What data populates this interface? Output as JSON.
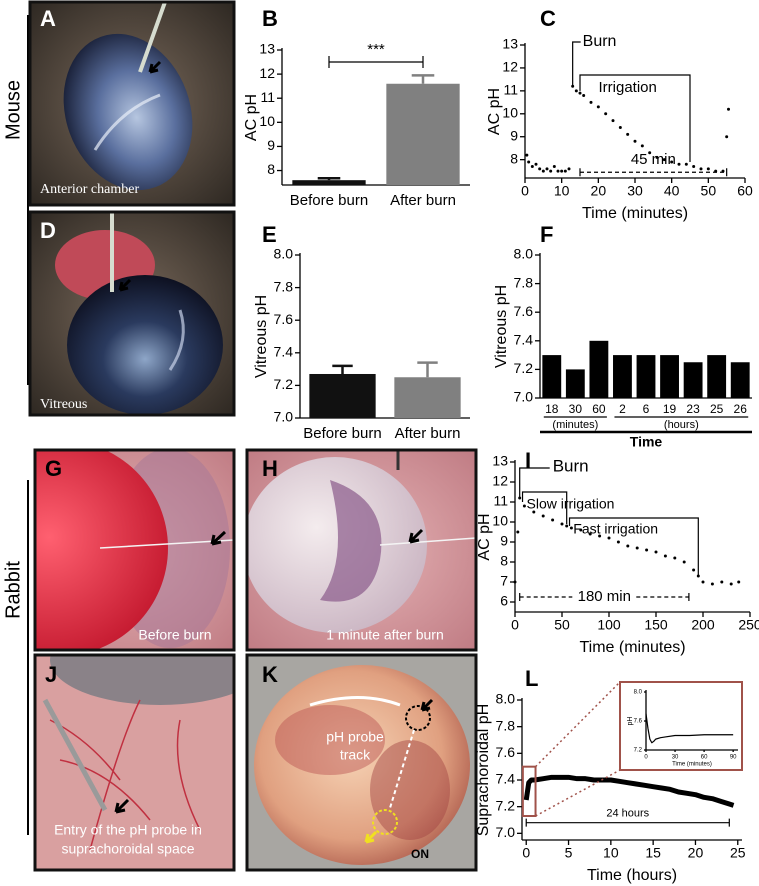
{
  "panel_labels": [
    "A",
    "B",
    "C",
    "D",
    "E",
    "F",
    "G",
    "H",
    "I",
    "J",
    "K",
    "L"
  ],
  "side_labels": [
    "Mouse",
    "Rabbit"
  ],
  "captions": {
    "A": "Anterior chamber",
    "D": "Vitreous",
    "G": "Before burn",
    "H": "1 minute after burn",
    "J": [
      "Entry of the pH probe in",
      "suprachoroidal space"
    ],
    "K": [
      "pH probe",
      "track"
    ],
    "K_nerve": "ON"
  },
  "chart_data": [
    {
      "type": "bar",
      "ylabel": "AC pH",
      "categories": [
        "Before burn",
        "After burn"
      ],
      "values": [
        7.6,
        11.6
      ],
      "errors": [
        0.08,
        0.35
      ],
      "colors": [
        "#111111",
        "#808080"
      ],
      "ylim": [
        7.4,
        13
      ],
      "yticks": [
        8,
        9,
        10,
        11,
        12,
        13
      ],
      "annotations": [
        "***"
      ]
    },
    {
      "type": "scatter",
      "ylabel": "AC pH",
      "xlabel": "Time (minutes)",
      "color": "#000000",
      "x": [
        0.5,
        1,
        2,
        3,
        4,
        5,
        6,
        7,
        8,
        9,
        10,
        11,
        12,
        13,
        14,
        15,
        16,
        18,
        20,
        22,
        24,
        26,
        28,
        30,
        32,
        34,
        36,
        38,
        40,
        42,
        44,
        46,
        48,
        50,
        52,
        54,
        55,
        55.5
      ],
      "values": [
        8.2,
        7.9,
        7.7,
        7.8,
        7.6,
        7.5,
        7.6,
        7.5,
        7.7,
        7.5,
        7.5,
        7.5,
        7.6,
        11.2,
        11.0,
        10.9,
        10.8,
        10.5,
        10.3,
        10.0,
        9.7,
        9.4,
        9.1,
        8.8,
        8.6,
        8.3,
        8.1,
        8.0,
        7.9,
        7.8,
        7.8,
        7.7,
        7.6,
        7.6,
        7.5,
        7.5,
        9.0,
        10.2
      ],
      "xlim": [
        0,
        60
      ],
      "xticks": [
        0,
        10,
        20,
        30,
        40,
        50,
        60
      ],
      "ylim": [
        7.2,
        13
      ],
      "yticks": [
        8,
        9,
        10,
        11,
        12,
        13
      ],
      "annotations": [
        "Burn",
        "Irrigation",
        "45 min"
      ]
    },
    {
      "type": "bar",
      "ylabel": "Vitreous pH",
      "categories": [
        "Before burn",
        "After burn"
      ],
      "values": [
        7.27,
        7.25
      ],
      "errors": [
        0.05,
        0.09
      ],
      "colors": [
        "#111111",
        "#808080"
      ],
      "ylim": [
        7.0,
        8.0
      ],
      "yticks": [
        {
          "value": 7.0,
          "label": "7.0"
        },
        7.2,
        7.4,
        7.6,
        7.8,
        {
          "value": 8.0,
          "label": "8.0"
        }
      ]
    },
    {
      "type": "bar",
      "ylabel": "Vitreous pH",
      "xlabel": "Time",
      "categories": [
        "18",
        "30",
        "60",
        "2",
        "6",
        "19",
        "23",
        "25",
        "26"
      ],
      "values": [
        7.3,
        7.2,
        7.4,
        7.3,
        7.3,
        7.3,
        7.25,
        7.3,
        7.25
      ],
      "color": "#000000",
      "ylim": [
        7.0,
        8.0
      ],
      "yticks": [
        {
          "value": 7.0,
          "label": "7.0"
        },
        7.2,
        7.4,
        7.6,
        7.8,
        {
          "value": 8.0,
          "label": "8.0"
        }
      ],
      "groups": [
        "(minutes)",
        "(hours)"
      ]
    },
    {
      "type": "scatter",
      "ylabel": "AC pH",
      "xlabel": "Time (minutes)",
      "color": "#000000",
      "x": [
        0,
        3,
        5,
        10,
        20,
        30,
        40,
        50,
        55,
        60,
        70,
        80,
        90,
        100,
        110,
        120,
        130,
        140,
        150,
        160,
        170,
        180,
        190,
        195,
        200,
        210,
        220,
        230,
        238
      ],
      "values": [
        7.0,
        9.5,
        11.2,
        10.8,
        10.5,
        10.3,
        10.1,
        9.9,
        9.8,
        9.7,
        9.6,
        9.4,
        9.3,
        9.2,
        9.0,
        8.8,
        8.7,
        8.6,
        8.5,
        8.3,
        8.2,
        8.0,
        7.6,
        7.3,
        7.0,
        6.9,
        7.0,
        6.9,
        7.0
      ],
      "xlim": [
        0,
        250
      ],
      "xticks": [
        0,
        50,
        100,
        150,
        200,
        250
      ],
      "ylim": [
        5.5,
        13
      ],
      "yticks": [
        6,
        7,
        8,
        9,
        10,
        11,
        12,
        13
      ],
      "annotations": [
        "Burn",
        "Slow irrigation",
        "Fast irrigation",
        "180 min"
      ]
    },
    {
      "type": "line",
      "ylabel": "Suprachoroidal pH",
      "xlabel": "Time (hours)",
      "color": "#000000",
      "x": [
        0,
        0.3,
        0.6,
        1,
        2,
        3,
        4,
        5,
        6,
        7,
        8,
        9,
        10,
        11,
        12,
        13,
        14,
        15,
        16,
        17,
        18,
        19,
        20,
        21,
        22,
        23,
        24,
        24.5
      ],
      "values": [
        7.25,
        7.38,
        7.4,
        7.4,
        7.41,
        7.42,
        7.42,
        7.42,
        7.41,
        7.41,
        7.4,
        7.4,
        7.4,
        7.39,
        7.38,
        7.37,
        7.36,
        7.35,
        7.34,
        7.33,
        7.31,
        7.3,
        7.29,
        7.27,
        7.26,
        7.24,
        7.22,
        7.21
      ],
      "xlim": [
        -0.5,
        25.5
      ],
      "xticks": [
        0,
        5,
        10,
        15,
        20,
        25
      ],
      "ylim": [
        6.95,
        8.0
      ],
      "yticks": [
        {
          "value": 7.0,
          "label": "7.0"
        },
        7.2,
        7.4,
        7.6,
        7.8,
        {
          "value": 8.0,
          "label": "8.0"
        }
      ],
      "annotations": [
        "24 hours"
      ]
    },
    {
      "type": "line",
      "inset": true,
      "ylabel": "pH",
      "xlabel": "Time (minutes)",
      "color": "#000000",
      "x": [
        0,
        2,
        4,
        6,
        8,
        10,
        15,
        20,
        30,
        45,
        60,
        75,
        90
      ],
      "values": [
        7.7,
        7.5,
        7.35,
        7.3,
        7.32,
        7.35,
        7.37,
        7.38,
        7.4,
        7.4,
        7.41,
        7.41,
        7.41
      ],
      "xlim": [
        0,
        95
      ],
      "xticks": [
        0,
        30,
        60,
        90
      ],
      "ylim": [
        7.2,
        8.0
      ],
      "yticks": [
        7.2,
        7.6,
        {
          "value": 8.0,
          "label": "8.0"
        }
      ]
    }
  ]
}
